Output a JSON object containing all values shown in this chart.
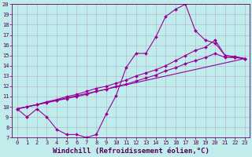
{
  "xlabel": "Windchill (Refroidissement éolien,°C)",
  "bg_color": "#c0ecec",
  "line_color": "#990099",
  "grid_color": "#b0b0cc",
  "xlim": [
    -0.5,
    23.5
  ],
  "ylim": [
    7,
    20
  ],
  "xticks": [
    0,
    1,
    2,
    3,
    4,
    5,
    6,
    7,
    8,
    9,
    10,
    11,
    12,
    13,
    14,
    15,
    16,
    17,
    18,
    19,
    20,
    21,
    22,
    23
  ],
  "yticks": [
    7,
    8,
    9,
    10,
    11,
    12,
    13,
    14,
    15,
    16,
    17,
    18,
    19,
    20
  ],
  "line1_x": [
    0,
    1,
    2,
    3,
    4,
    5,
    6,
    7,
    8,
    9,
    10,
    11,
    12,
    13,
    14,
    15,
    16,
    17,
    18,
    19,
    20,
    21,
    22,
    23
  ],
  "line1_y": [
    9.8,
    9.0,
    9.8,
    9.0,
    7.8,
    7.3,
    7.3,
    7.0,
    7.3,
    9.3,
    11.1,
    13.8,
    15.2,
    15.2,
    16.8,
    18.8,
    19.5,
    20.0,
    17.4,
    16.5,
    16.2,
    15.0,
    14.8,
    14.7
  ],
  "line2_x": [
    0,
    1,
    2,
    3,
    4,
    5,
    6,
    7,
    8,
    9,
    10,
    11,
    12,
    13,
    14,
    15,
    16,
    17,
    18,
    19,
    20,
    21,
    22,
    23
  ],
  "line2_y": [
    9.8,
    10.0,
    10.2,
    10.4,
    10.6,
    10.8,
    11.0,
    11.2,
    11.5,
    11.7,
    12.0,
    12.2,
    12.5,
    12.8,
    13.1,
    13.5,
    13.8,
    14.2,
    14.5,
    14.8,
    15.2,
    14.8,
    14.8,
    14.7
  ],
  "line3_x": [
    0,
    1,
    2,
    3,
    4,
    5,
    6,
    7,
    8,
    9,
    10,
    11,
    12,
    13,
    14,
    15,
    16,
    17,
    18,
    19,
    20,
    21,
    22,
    23
  ],
  "line3_y": [
    9.8,
    10.0,
    10.2,
    10.5,
    10.7,
    11.0,
    11.2,
    11.5,
    11.8,
    12.0,
    12.3,
    12.6,
    13.0,
    13.3,
    13.6,
    14.0,
    14.5,
    15.0,
    15.5,
    15.8,
    16.5,
    15.0,
    14.9,
    14.7
  ],
  "line4_x": [
    0,
    23
  ],
  "line4_y": [
    9.8,
    14.7
  ],
  "marker": "D",
  "marker_size": 2,
  "linewidth": 0.8,
  "tick_fontsize": 5,
  "label_fontsize": 6.5
}
